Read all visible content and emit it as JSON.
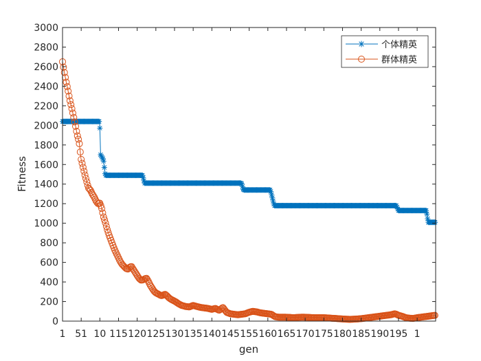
{
  "chart_data": {
    "type": "line",
    "title": "",
    "xlabel": "gen",
    "ylabel": "Fitness",
    "xlim": [
      1,
      2000
    ],
    "ylim": [
      0,
      3000
    ],
    "xticks": [
      1,
      101,
      201,
      301,
      401,
      501,
      601,
      701,
      801,
      901,
      1001,
      1101,
      1201,
      1301,
      1401,
      1501,
      1601,
      1701,
      1801,
      1901
    ],
    "xtick_labels": [
      "1",
      "51",
      "10",
      "115",
      "120",
      "125",
      "130",
      "135",
      "140",
      "145",
      "155",
      "160",
      "165",
      "170",
      "175",
      "180",
      "185",
      "190",
      "195",
      "1"
    ],
    "yticks": [
      0,
      200,
      400,
      600,
      800,
      1000,
      1200,
      1400,
      1600,
      1800,
      2000,
      2200,
      2400,
      2600,
      2800,
      3000
    ],
    "grid": false,
    "legend_position": "top-right",
    "series": [
      {
        "name": "个体精英",
        "color": "#0072BD",
        "marker": "star",
        "steps": [
          [
            1,
            2040
          ],
          [
            200,
            2040
          ],
          [
            205,
            1700
          ],
          [
            220,
            1650
          ],
          [
            230,
            1490
          ],
          [
            430,
            1490
          ],
          [
            440,
            1410
          ],
          [
            960,
            1410
          ],
          [
            970,
            1340
          ],
          [
            1115,
            1340
          ],
          [
            1125,
            1260
          ],
          [
            1135,
            1180
          ],
          [
            1790,
            1180
          ],
          [
            1800,
            1130
          ],
          [
            1950,
            1130
          ],
          [
            1960,
            1010
          ],
          [
            2000,
            1010
          ]
        ]
      },
      {
        "name": "群体精英",
        "color": "#D95319",
        "marker": "circle",
        "points": [
          [
            1,
            2650
          ],
          [
            10,
            2550
          ],
          [
            20,
            2450
          ],
          [
            30,
            2360
          ],
          [
            40,
            2260
          ],
          [
            50,
            2180
          ],
          [
            60,
            2090
          ],
          [
            70,
            2000
          ],
          [
            80,
            1900
          ],
          [
            90,
            1830
          ],
          [
            100,
            1660
          ],
          [
            110,
            1580
          ],
          [
            120,
            1500
          ],
          [
            130,
            1430
          ],
          [
            140,
            1360
          ],
          [
            150,
            1340
          ],
          [
            160,
            1300
          ],
          [
            170,
            1270
          ],
          [
            180,
            1230
          ],
          [
            190,
            1200
          ],
          [
            200,
            1210
          ],
          [
            210,
            1160
          ],
          [
            220,
            1070
          ],
          [
            230,
            1010
          ],
          [
            240,
            940
          ],
          [
            250,
            880
          ],
          [
            260,
            830
          ],
          [
            270,
            780
          ],
          [
            280,
            730
          ],
          [
            290,
            690
          ],
          [
            300,
            650
          ],
          [
            310,
            610
          ],
          [
            320,
            580
          ],
          [
            330,
            560
          ],
          [
            340,
            540
          ],
          [
            350,
            530
          ],
          [
            360,
            550
          ],
          [
            370,
            560
          ],
          [
            380,
            530
          ],
          [
            390,
            500
          ],
          [
            400,
            470
          ],
          [
            410,
            440
          ],
          [
            420,
            420
          ],
          [
            430,
            420
          ],
          [
            440,
            430
          ],
          [
            450,
            440
          ],
          [
            460,
            410
          ],
          [
            470,
            370
          ],
          [
            480,
            340
          ],
          [
            490,
            310
          ],
          [
            500,
            290
          ],
          [
            510,
            280
          ],
          [
            520,
            270
          ],
          [
            530,
            260
          ],
          [
            540,
            265
          ],
          [
            550,
            275
          ],
          [
            560,
            260
          ],
          [
            570,
            240
          ],
          [
            580,
            225
          ],
          [
            590,
            215
          ],
          [
            600,
            205
          ],
          [
            610,
            195
          ],
          [
            620,
            180
          ],
          [
            640,
            160
          ],
          [
            660,
            150
          ],
          [
            680,
            145
          ],
          [
            700,
            160
          ],
          [
            720,
            150
          ],
          [
            740,
            140
          ],
          [
            760,
            135
          ],
          [
            780,
            130
          ],
          [
            800,
            120
          ],
          [
            820,
            130
          ],
          [
            840,
            110
          ],
          [
            860,
            140
          ],
          [
            880,
            90
          ],
          [
            900,
            75
          ],
          [
            920,
            70
          ],
          [
            940,
            65
          ],
          [
            960,
            70
          ],
          [
            980,
            75
          ],
          [
            1000,
            90
          ],
          [
            1020,
            100
          ],
          [
            1040,
            95
          ],
          [
            1060,
            85
          ],
          [
            1080,
            80
          ],
          [
            1100,
            75
          ],
          [
            1120,
            70
          ],
          [
            1140,
            45
          ],
          [
            1160,
            40
          ],
          [
            1180,
            40
          ],
          [
            1200,
            40
          ],
          [
            1220,
            38
          ],
          [
            1240,
            35
          ],
          [
            1260,
            38
          ],
          [
            1280,
            40
          ],
          [
            1300,
            40
          ],
          [
            1320,
            38
          ],
          [
            1340,
            36
          ],
          [
            1360,
            35
          ],
          [
            1380,
            35
          ],
          [
            1400,
            35
          ],
          [
            1420,
            33
          ],
          [
            1440,
            30
          ],
          [
            1460,
            28
          ],
          [
            1480,
            25
          ],
          [
            1500,
            22
          ],
          [
            1520,
            20
          ],
          [
            1540,
            18
          ],
          [
            1560,
            20
          ],
          [
            1580,
            22
          ],
          [
            1600,
            25
          ],
          [
            1620,
            30
          ],
          [
            1640,
            35
          ],
          [
            1660,
            40
          ],
          [
            1680,
            45
          ],
          [
            1700,
            50
          ],
          [
            1720,
            55
          ],
          [
            1740,
            60
          ],
          [
            1760,
            65
          ],
          [
            1780,
            75
          ],
          [
            1790,
            70
          ],
          [
            1800,
            60
          ],
          [
            1820,
            50
          ],
          [
            1840,
            35
          ],
          [
            1860,
            30
          ],
          [
            1880,
            28
          ],
          [
            1900,
            35
          ],
          [
            1920,
            40
          ],
          [
            1940,
            45
          ],
          [
            1960,
            50
          ],
          [
            1980,
            55
          ],
          [
            2000,
            60
          ]
        ]
      }
    ]
  }
}
